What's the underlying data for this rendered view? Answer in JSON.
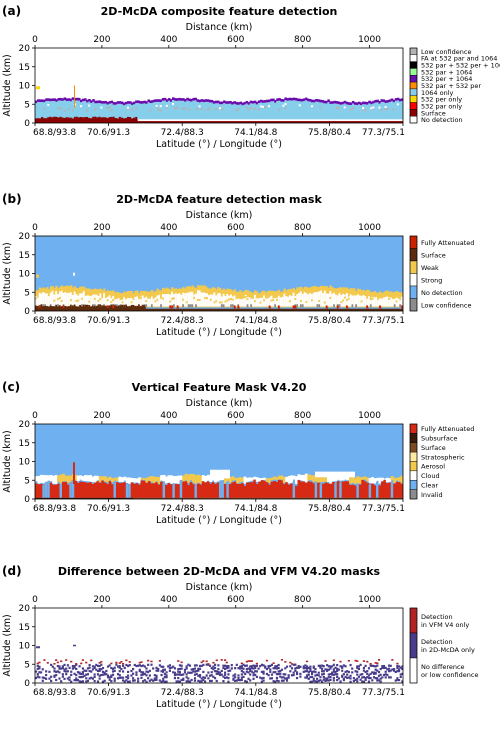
{
  "chart_data": [
    {
      "type": "heatmap",
      "panel": "(a)",
      "title": "2D-McDA composite feature detection",
      "top_axis_label": "Distance (km)",
      "top_ticks": [
        "0",
        "200",
        "400",
        "600",
        "800",
        "1000"
      ],
      "top_tick_values": [
        0,
        200,
        400,
        600,
        800,
        1000
      ],
      "distance_range": [
        0,
        1100
      ],
      "ylabel": "Altitude (km)",
      "yticks": [
        "0",
        "5",
        "10",
        "15",
        "20"
      ],
      "ylim": [
        0,
        20
      ],
      "xlabel": "Latitude (°) / Longitude (°)",
      "xticks": [
        "68.8/93.8",
        "70.6/91.3",
        "72.4/88.3",
        "74.1/84.8",
        "75.8/80.4",
        "77.3/75.1"
      ],
      "legend": [
        {
          "label": "Low confidence",
          "color": "#b3b3b3"
        },
        {
          "label": "FA at 532 par and 1064",
          "color": "#ffffff"
        },
        {
          "label": "532 par + 532 per + 1064",
          "color": "#000000"
        },
        {
          "label": "532 par + 1064",
          "color": "#98fb98"
        },
        {
          "label": "532 per + 1064",
          "color": "#6a0dad"
        },
        {
          "label": "532 par + 532 per",
          "color": "#ff8c00"
        },
        {
          "label": "1064 only",
          "color": "#87ceeb"
        },
        {
          "label": "532 per only",
          "color": "#ffd700"
        },
        {
          "label": "532 par only",
          "color": "#ff0000"
        },
        {
          "label": "Surface",
          "color": "#8b0000"
        },
        {
          "label": "No detection",
          "color": "#ffffff"
        }
      ]
    },
    {
      "type": "heatmap",
      "panel": "(b)",
      "title": "2D-McDA feature detection mask",
      "top_axis_label": "Distance (km)",
      "top_ticks": [
        "0",
        "200",
        "400",
        "600",
        "800",
        "1000"
      ],
      "top_tick_values": [
        0,
        200,
        400,
        600,
        800,
        1000
      ],
      "distance_range": [
        0,
        1100
      ],
      "ylabel": "Altitude (km)",
      "yticks": [
        "0",
        "5",
        "10",
        "15",
        "20"
      ],
      "ylim": [
        0,
        20
      ],
      "xlabel": "Latitude (°) / Longitude (°)",
      "xticks": [
        "68.8/93.8",
        "70.6/91.3",
        "72.4/88.3",
        "74.1/84.8",
        "75.8/80.4",
        "77.3/75.1"
      ],
      "legend": [
        {
          "label": "Fully Attenuated",
          "color": "#cc2200"
        },
        {
          "label": "Surface",
          "color": "#5c2a0c"
        },
        {
          "label": "Weak",
          "color": "#f2c94c"
        },
        {
          "label": "Strong",
          "color": "#ffffff"
        },
        {
          "label": "No detection",
          "color": "#6fb0f0"
        },
        {
          "label": "Low confidence",
          "color": "#8c8c8c"
        }
      ]
    },
    {
      "type": "heatmap",
      "panel": "(c)",
      "title": "Vertical Feature Mask V4.20",
      "top_axis_label": "Distance (km)",
      "top_ticks": [
        "0",
        "200",
        "400",
        "600",
        "800",
        "1000"
      ],
      "top_tick_values": [
        0,
        200,
        400,
        600,
        800,
        1000
      ],
      "distance_range": [
        0,
        1100
      ],
      "ylabel": "Altitude (km)",
      "yticks": [
        "0",
        "5",
        "10",
        "15",
        "20"
      ],
      "ylim": [
        0,
        20
      ],
      "xlabel": "Latitude (°) / Longitude (°)",
      "xticks": [
        "68.8/93.8",
        "70.6/91.3",
        "72.4/88.3",
        "74.1/84.8",
        "75.8/80.4",
        "77.3/75.1"
      ],
      "legend": [
        {
          "label": "Fully Attenuated",
          "color": "#d62a14"
        },
        {
          "label": "Subsurface",
          "color": "#3a1a0a"
        },
        {
          "label": "Surface",
          "color": "#7a4a20"
        },
        {
          "label": "Stratospheric",
          "color": "#fde9a0"
        },
        {
          "label": "Aerosol",
          "color": "#f2c94c"
        },
        {
          "label": "Cloud",
          "color": "#ffffff"
        },
        {
          "label": "Clear",
          "color": "#6fb0f0"
        },
        {
          "label": "Invalid",
          "color": "#8c8c8c"
        }
      ]
    },
    {
      "type": "heatmap",
      "panel": "(d)",
      "title": "Difference between 2D-McDA and VFM V4.20 masks",
      "top_axis_label": "Distance (km)",
      "top_ticks": [
        "0",
        "200",
        "400",
        "600",
        "800",
        "1000"
      ],
      "top_tick_values": [
        0,
        200,
        400,
        600,
        800,
        1000
      ],
      "distance_range": [
        0,
        1100
      ],
      "ylabel": "Altitude (km)",
      "yticks": [
        "0",
        "5",
        "10",
        "15",
        "20"
      ],
      "ylim": [
        0,
        20
      ],
      "xlabel": "Latitude (°) / Longitude (°)",
      "xticks": [
        "68.8/93.8",
        "70.6/91.3",
        "72.4/88.3",
        "74.1/84.8",
        "75.8/80.4",
        "77.3/75.1"
      ],
      "legend": [
        {
          "label": "Detection in VFM V4 only",
          "lines": [
            "Detection",
            "in VFM V4 only"
          ],
          "color": "#b22222"
        },
        {
          "label": "Detection in 2D-McDA only",
          "lines": [
            "Detection",
            "in 2D-McDA only"
          ],
          "color": "#483d8b"
        },
        {
          "label": "No difference or low confidence",
          "lines": [
            "No difference",
            "or low confidence"
          ],
          "color": "#ffffff"
        }
      ]
    }
  ]
}
